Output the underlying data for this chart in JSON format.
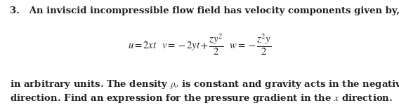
{
  "background_color": "#ffffff",
  "fig_width": 5.68,
  "fig_height": 1.57,
  "dpi": 100,
  "text_color": "#231f20",
  "font_size_main": 9.5,
  "font_size_eq": 10.5,
  "line1": "3.   An inviscid incompressible flow field has velocity components given by,",
  "line_bottom1": "in arbitrary units. The density $\\rho_o$ is constant and gravity acts in the negative $z$",
  "line_bottom2": "direction. Find an expression for the pressure gradient in the $x$ direction."
}
